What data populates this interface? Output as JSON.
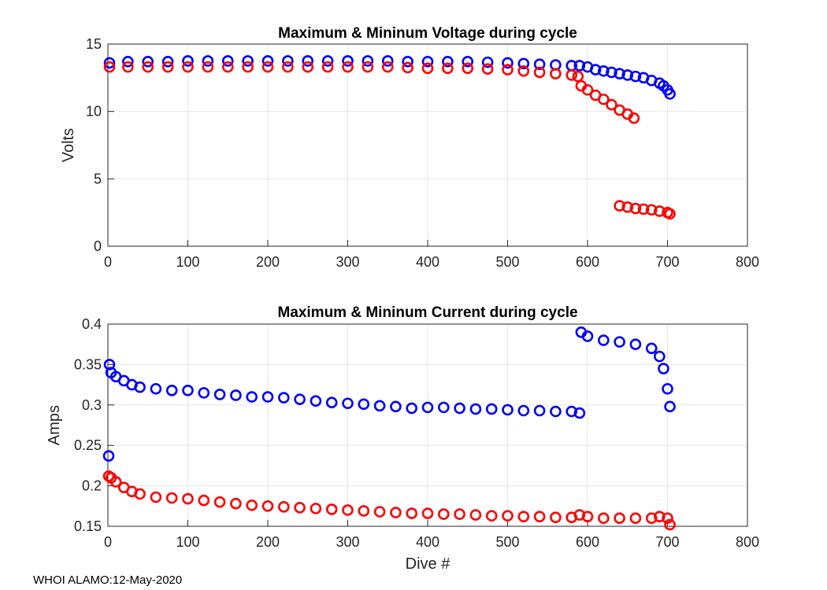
{
  "chart_data": [
    {
      "type": "scatter",
      "title": "Maximum & Mininum Voltage during cycle",
      "xlabel": "",
      "ylabel": "Volts",
      "xlim": [
        0,
        800
      ],
      "ylim": [
        0,
        15
      ],
      "xticks": [
        0,
        100,
        200,
        300,
        400,
        500,
        600,
        700,
        800
      ],
      "yticks": [
        0,
        5,
        10,
        15
      ],
      "ytick_labels": [
        "0",
        "5",
        "10",
        "15"
      ],
      "grid": true,
      "marker": "circle-open",
      "series": [
        {
          "name": "Maximum",
          "color": "#0000ff",
          "x": [
            2,
            25,
            50,
            75,
            100,
            125,
            150,
            175,
            200,
            225,
            250,
            275,
            300,
            325,
            350,
            375,
            400,
            425,
            450,
            475,
            500,
            520,
            540,
            560,
            580,
            590,
            600,
            610,
            620,
            630,
            640,
            650,
            660,
            670,
            680,
            690,
            695,
            700,
            703
          ],
          "y": [
            13.6,
            13.7,
            13.7,
            13.7,
            13.75,
            13.75,
            13.75,
            13.75,
            13.75,
            13.75,
            13.75,
            13.75,
            13.75,
            13.75,
            13.75,
            13.7,
            13.7,
            13.7,
            13.7,
            13.65,
            13.6,
            13.55,
            13.5,
            13.45,
            13.4,
            13.4,
            13.3,
            13.1,
            13.0,
            12.9,
            12.8,
            12.7,
            12.6,
            12.5,
            12.3,
            12.1,
            11.9,
            11.6,
            11.3
          ]
        },
        {
          "name": "Minimum",
          "color": "#ff0000",
          "x": [
            2,
            25,
            50,
            75,
            100,
            125,
            150,
            175,
            200,
            225,
            250,
            275,
            300,
            325,
            350,
            375,
            400,
            425,
            450,
            475,
            500,
            520,
            540,
            560,
            580,
            588,
            592,
            600,
            610,
            620,
            630,
            640,
            650,
            658,
            640,
            650,
            660,
            670,
            680,
            690,
            700,
            703
          ],
          "y": [
            13.3,
            13.3,
            13.3,
            13.3,
            13.3,
            13.3,
            13.3,
            13.3,
            13.3,
            13.3,
            13.3,
            13.3,
            13.3,
            13.3,
            13.3,
            13.25,
            13.2,
            13.2,
            13.2,
            13.15,
            13.1,
            13.0,
            12.9,
            12.8,
            12.7,
            12.6,
            11.9,
            11.6,
            11.2,
            10.9,
            10.5,
            10.1,
            9.8,
            9.5,
            3.0,
            2.9,
            2.8,
            2.75,
            2.7,
            2.6,
            2.5,
            2.4
          ]
        }
      ]
    },
    {
      "type": "scatter",
      "title": "Maximum & Mininum Current during cycle",
      "xlabel": "Dive #",
      "ylabel": "Amps",
      "xlim": [
        0,
        800
      ],
      "ylim": [
        0.15,
        0.4
      ],
      "xticks": [
        0,
        100,
        200,
        300,
        400,
        500,
        600,
        700,
        800
      ],
      "yticks": [
        0.15,
        0.2,
        0.25,
        0.3,
        0.35,
        0.4
      ],
      "ytick_labels": [
        "0.15",
        "0.2",
        "0.25",
        "0.3",
        "0.35",
        "0.4"
      ],
      "grid": true,
      "marker": "circle-open",
      "series": [
        {
          "name": "Maximum",
          "color": "#0000ff",
          "x": [
            1,
            2,
            4,
            10,
            20,
            30,
            40,
            60,
            80,
            100,
            120,
            140,
            160,
            180,
            200,
            220,
            240,
            260,
            280,
            300,
            320,
            340,
            360,
            380,
            400,
            420,
            440,
            460,
            480,
            500,
            520,
            540,
            560,
            580,
            590,
            592,
            600,
            620,
            640,
            660,
            680,
            690,
            695,
            700,
            703
          ],
          "y": [
            0.237,
            0.35,
            0.34,
            0.335,
            0.33,
            0.325,
            0.322,
            0.32,
            0.318,
            0.318,
            0.315,
            0.313,
            0.312,
            0.31,
            0.31,
            0.309,
            0.307,
            0.305,
            0.303,
            0.302,
            0.301,
            0.299,
            0.298,
            0.296,
            0.297,
            0.297,
            0.296,
            0.295,
            0.295,
            0.294,
            0.293,
            0.293,
            0.292,
            0.292,
            0.29,
            0.39,
            0.385,
            0.38,
            0.378,
            0.375,
            0.37,
            0.36,
            0.345,
            0.32,
            0.298
          ]
        },
        {
          "name": "Minimum",
          "color": "#ff0000",
          "x": [
            1,
            4,
            10,
            20,
            30,
            40,
            60,
            80,
            100,
            120,
            140,
            160,
            180,
            200,
            220,
            240,
            260,
            280,
            300,
            320,
            340,
            360,
            380,
            400,
            420,
            440,
            460,
            480,
            500,
            520,
            540,
            560,
            580,
            590,
            600,
            620,
            640,
            660,
            680,
            690,
            700,
            703
          ],
          "y": [
            0.212,
            0.21,
            0.205,
            0.198,
            0.193,
            0.19,
            0.186,
            0.185,
            0.184,
            0.182,
            0.18,
            0.178,
            0.176,
            0.175,
            0.174,
            0.173,
            0.172,
            0.171,
            0.17,
            0.169,
            0.168,
            0.167,
            0.166,
            0.166,
            0.165,
            0.165,
            0.164,
            0.163,
            0.163,
            0.162,
            0.162,
            0.161,
            0.161,
            0.164,
            0.162,
            0.16,
            0.16,
            0.16,
            0.16,
            0.162,
            0.16,
            0.152
          ]
        }
      ]
    }
  ],
  "footer": "WHOI ALAMO:12-May-2020"
}
